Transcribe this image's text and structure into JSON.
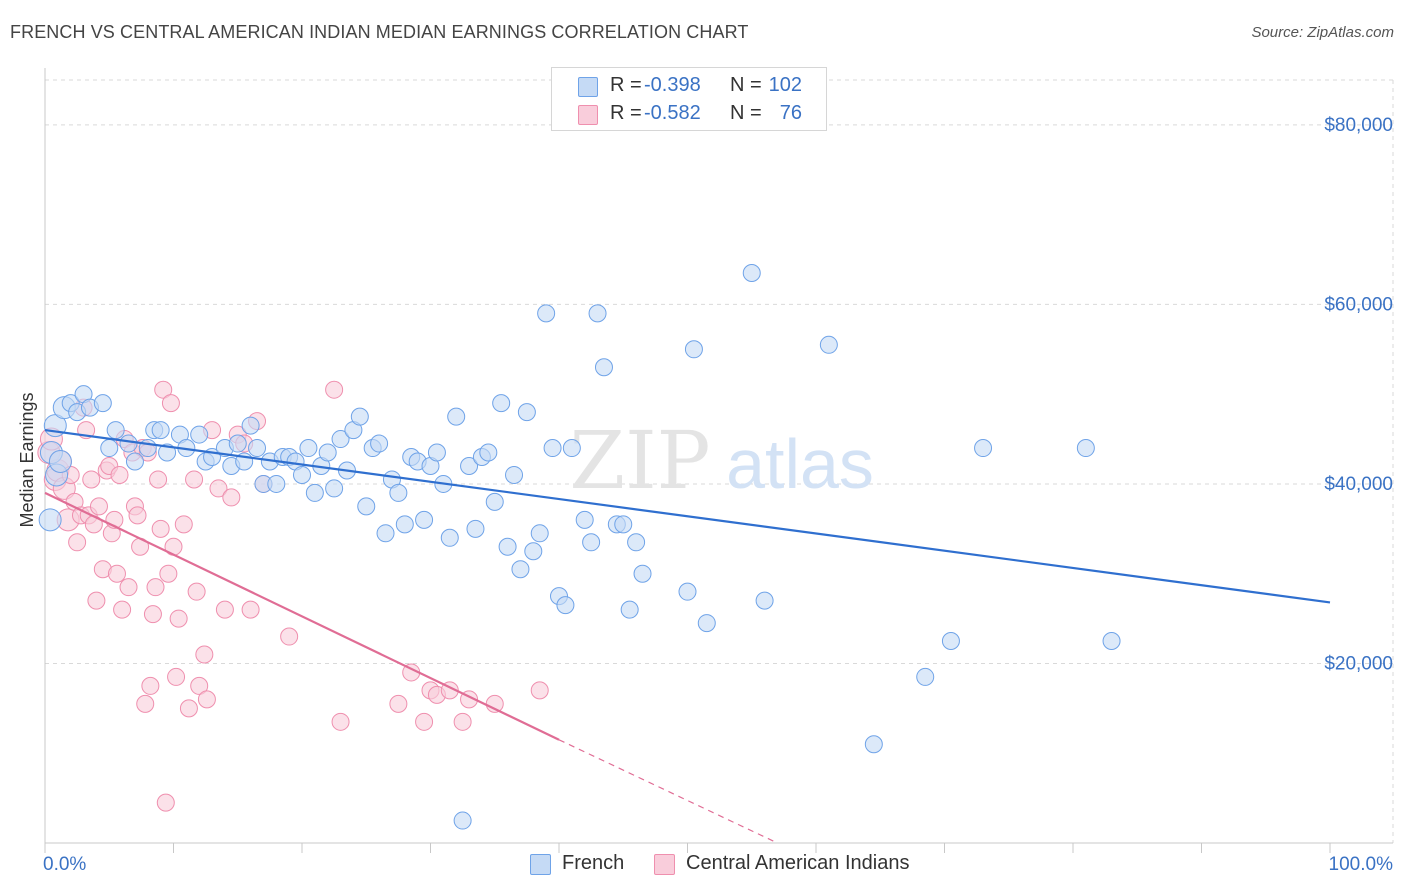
{
  "title": "FRENCH VS CENTRAL AMERICAN INDIAN MEDIAN EARNINGS CORRELATION CHART",
  "source": "Source: ZipAtlas.com",
  "watermark": {
    "zip": "ZIP",
    "atlas": "atlas"
  },
  "colors": {
    "french": "#6fa3e8",
    "french_fill": "#c5daf5",
    "french_line": "#2f6fcf",
    "cai": "#ef8fae",
    "cai_fill": "#f9cddb",
    "cai_line": "#e06d95",
    "axis_text": "#3a72c4",
    "grid": "#d9d9d9"
  },
  "legend": {
    "rows": [
      {
        "r_label": "R =",
        "r_value": "-0.398",
        "n_label": "N =",
        "n_value": "102"
      },
      {
        "r_label": "R =",
        "r_value": "-0.582",
        "n_label": "N =",
        "n_value": "76"
      }
    ]
  },
  "bottom_legend": {
    "french": "French",
    "cai": "Central American Indians"
  },
  "chart_data": {
    "type": "scatter",
    "ylabel": "Median Earnings",
    "xlabel": "",
    "xlim": [
      0,
      100
    ],
    "ylim": [
      0,
      85000
    ],
    "x_tick_labels": [
      "0.0%",
      "100.0%"
    ],
    "y_ticks": [
      20000,
      40000,
      60000,
      80000
    ],
    "y_tick_labels": [
      "$20,000",
      "$40,000",
      "$60,000",
      "$80,000"
    ],
    "grid": true,
    "legend_position": "top-center",
    "series": [
      {
        "name": "French",
        "trend": {
          "x": [
            0,
            100
          ],
          "y": [
            46000,
            26800
          ]
        },
        "points": [
          [
            0.4,
            36000
          ],
          [
            0.5,
            43500
          ],
          [
            0.8,
            46500
          ],
          [
            0.9,
            41000
          ],
          [
            1.2,
            42500
          ],
          [
            1.5,
            48500
          ],
          [
            2.0,
            49000
          ],
          [
            2.5,
            48000
          ],
          [
            3.0,
            50000
          ],
          [
            3.5,
            48500
          ],
          [
            4.5,
            49000
          ],
          [
            5.0,
            44000
          ],
          [
            5.5,
            46000
          ],
          [
            6.5,
            44500
          ],
          [
            7.0,
            42500
          ],
          [
            8.0,
            44000
          ],
          [
            8.5,
            46000
          ],
          [
            9.0,
            46000
          ],
          [
            9.5,
            43500
          ],
          [
            10.5,
            45500
          ],
          [
            11.0,
            44000
          ],
          [
            12.0,
            45500
          ],
          [
            12.5,
            42500
          ],
          [
            13.0,
            43000
          ],
          [
            14.0,
            44000
          ],
          [
            14.5,
            42000
          ],
          [
            15.0,
            44500
          ],
          [
            15.5,
            42500
          ],
          [
            16.0,
            46500
          ],
          [
            16.5,
            44000
          ],
          [
            17.0,
            40000
          ],
          [
            17.5,
            42500
          ],
          [
            18.0,
            40000
          ],
          [
            18.5,
            43000
          ],
          [
            19.0,
            43000
          ],
          [
            19.5,
            42500
          ],
          [
            20.0,
            41000
          ],
          [
            20.5,
            44000
          ],
          [
            21.0,
            39000
          ],
          [
            21.5,
            42000
          ],
          [
            22.0,
            43500
          ],
          [
            22.5,
            39500
          ],
          [
            23.0,
            45000
          ],
          [
            23.5,
            41500
          ],
          [
            24.0,
            46000
          ],
          [
            24.5,
            47500
          ],
          [
            25.0,
            37500
          ],
          [
            25.5,
            44000
          ],
          [
            26.0,
            44500
          ],
          [
            26.5,
            34500
          ],
          [
            27.0,
            40500
          ],
          [
            27.5,
            39000
          ],
          [
            28.0,
            35500
          ],
          [
            28.5,
            43000
          ],
          [
            29.0,
            42500
          ],
          [
            29.5,
            36000
          ],
          [
            30.0,
            42000
          ],
          [
            30.5,
            43500
          ],
          [
            31.0,
            40000
          ],
          [
            31.5,
            34000
          ],
          [
            32.0,
            47500
          ],
          [
            32.5,
            2500
          ],
          [
            33.0,
            42000
          ],
          [
            33.5,
            35000
          ],
          [
            34.0,
            43000
          ],
          [
            34.5,
            43500
          ],
          [
            35.0,
            38000
          ],
          [
            35.5,
            49000
          ],
          [
            36.0,
            33000
          ],
          [
            36.5,
            41000
          ],
          [
            37.0,
            30500
          ],
          [
            37.5,
            48000
          ],
          [
            38.0,
            32500
          ],
          [
            38.5,
            34500
          ],
          [
            39.0,
            59000
          ],
          [
            39.5,
            44000
          ],
          [
            40.0,
            27500
          ],
          [
            40.5,
            26500
          ],
          [
            41.0,
            44000
          ],
          [
            42.0,
            36000
          ],
          [
            42.5,
            33500
          ],
          [
            43.0,
            59000
          ],
          [
            43.5,
            53000
          ],
          [
            44.5,
            35500
          ],
          [
            45.0,
            35500
          ],
          [
            45.5,
            26000
          ],
          [
            46.0,
            33500
          ],
          [
            46.5,
            30000
          ],
          [
            50.0,
            28000
          ],
          [
            50.5,
            55000
          ],
          [
            51.5,
            24500
          ],
          [
            55.0,
            63500
          ],
          [
            56.0,
            27000
          ],
          [
            61.0,
            55500
          ],
          [
            64.5,
            11000
          ],
          [
            68.5,
            18500
          ],
          [
            70.5,
            22500
          ],
          [
            73.0,
            44000
          ],
          [
            81.0,
            44000
          ],
          [
            83.0,
            22500
          ]
        ]
      },
      {
        "name": "Central American Indians",
        "trend": {
          "x": [
            0,
            40
          ],
          "y": [
            39000,
            11500
          ]
        },
        "trend_dashed": {
          "x": [
            40,
            57
          ],
          "y": [
            11500,
            0
          ]
        },
        "points": [
          [
            0.3,
            43500
          ],
          [
            0.5,
            45000
          ],
          [
            0.8,
            40500
          ],
          [
            1.0,
            41500
          ],
          [
            1.2,
            42500
          ],
          [
            1.5,
            39500
          ],
          [
            1.8,
            36000
          ],
          [
            2.0,
            41000
          ],
          [
            2.3,
            38000
          ],
          [
            2.5,
            33500
          ],
          [
            2.8,
            36500
          ],
          [
            3.0,
            48500
          ],
          [
            3.2,
            46000
          ],
          [
            3.4,
            36500
          ],
          [
            3.6,
            40500
          ],
          [
            3.8,
            35500
          ],
          [
            4.0,
            27000
          ],
          [
            4.2,
            37500
          ],
          [
            4.5,
            30500
          ],
          [
            4.8,
            41500
          ],
          [
            5.0,
            42000
          ],
          [
            5.2,
            34500
          ],
          [
            5.4,
            36000
          ],
          [
            5.6,
            30000
          ],
          [
            5.8,
            41000
          ],
          [
            6.0,
            26000
          ],
          [
            6.2,
            45000
          ],
          [
            6.5,
            28500
          ],
          [
            6.8,
            43500
          ],
          [
            7.0,
            37500
          ],
          [
            7.2,
            36500
          ],
          [
            7.4,
            33000
          ],
          [
            7.6,
            44000
          ],
          [
            7.8,
            15500
          ],
          [
            8.0,
            43500
          ],
          [
            8.2,
            17500
          ],
          [
            8.4,
            25500
          ],
          [
            8.6,
            28500
          ],
          [
            8.8,
            40500
          ],
          [
            9.0,
            35000
          ],
          [
            9.2,
            50500
          ],
          [
            9.4,
            4500
          ],
          [
            9.6,
            30000
          ],
          [
            9.8,
            49000
          ],
          [
            10.0,
            33000
          ],
          [
            10.2,
            18500
          ],
          [
            10.4,
            25000
          ],
          [
            10.8,
            35500
          ],
          [
            11.2,
            15000
          ],
          [
            11.6,
            40500
          ],
          [
            11.8,
            28000
          ],
          [
            12.0,
            17500
          ],
          [
            12.4,
            21000
          ],
          [
            12.6,
            16000
          ],
          [
            13.0,
            46000
          ],
          [
            13.5,
            39500
          ],
          [
            14.0,
            26000
          ],
          [
            14.5,
            38500
          ],
          [
            15.0,
            45500
          ],
          [
            15.5,
            44500
          ],
          [
            16.0,
            26000
          ],
          [
            16.5,
            47000
          ],
          [
            17.0,
            40000
          ],
          [
            19.0,
            23000
          ],
          [
            22.5,
            50500
          ],
          [
            23.0,
            13500
          ],
          [
            27.5,
            15500
          ],
          [
            28.5,
            19000
          ],
          [
            29.5,
            13500
          ],
          [
            30.0,
            17000
          ],
          [
            30.5,
            16500
          ],
          [
            31.5,
            17000
          ],
          [
            32.5,
            13500
          ],
          [
            33.0,
            16000
          ],
          [
            35.0,
            15500
          ],
          [
            38.5,
            17000
          ]
        ]
      }
    ]
  }
}
